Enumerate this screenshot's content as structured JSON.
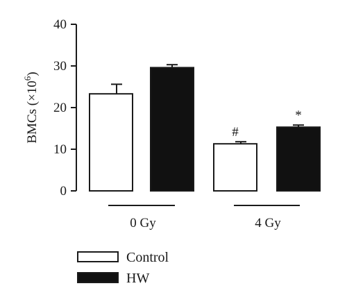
{
  "chart_data": {
    "type": "bar",
    "title": "",
    "ylabel_main": "BMCs (×10",
    "ylabel_exp": "6",
    "ylabel_close": ")",
    "ylim": [
      0,
      40
    ],
    "yticks": [
      "0",
      "10",
      "20",
      "30",
      "40"
    ],
    "groups": [
      {
        "label": "0 Gy"
      },
      {
        "label": "4 Gy"
      }
    ],
    "series": [
      {
        "name": "Control",
        "fill": "#ffffff",
        "values": [
          23.3,
          11.3
        ],
        "errors": [
          2.3,
          0.5
        ],
        "annotations": [
          "",
          "#"
        ]
      },
      {
        "name": "HW",
        "fill": "#111111",
        "values": [
          29.6,
          15.3
        ],
        "errors": [
          0.7,
          0.5
        ],
        "annotations": [
          "",
          "*"
        ]
      }
    ],
    "legend_position": "bottom-left",
    "grid": false
  }
}
